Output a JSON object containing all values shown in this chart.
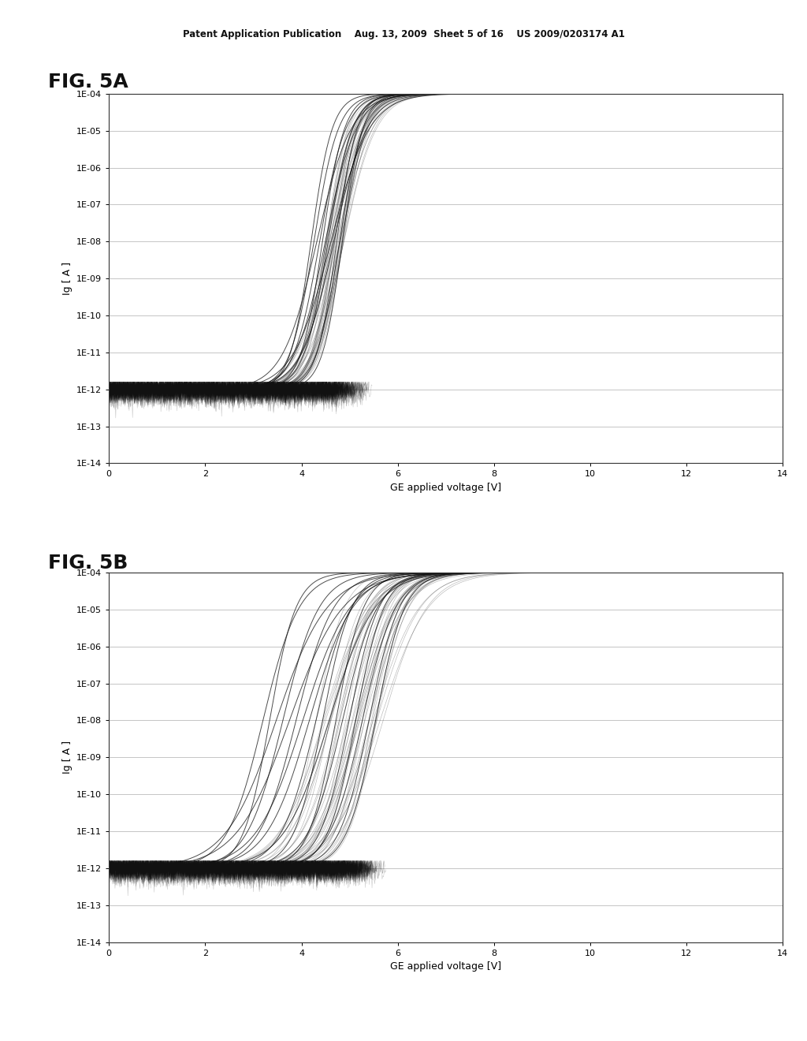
{
  "background_color": "#ffffff",
  "plot_bg_color": "#ffffff",
  "header_text": "Patent Application Publication    Aug. 13, 2009  Sheet 5 of 16    US 2009/0203174 A1",
  "fig5a_label": "FIG. 5A",
  "fig5b_label": "FIG. 5B",
  "xlabel": "GE applied voltage [V]",
  "ylabel": "Ig [ A ]",
  "xlim": [
    0,
    14
  ],
  "ylim_log_min": -14,
  "ylim_log_max": -4,
  "xticks": [
    0,
    2,
    4,
    6,
    8,
    10,
    12,
    14
  ],
  "ytick_labels": [
    "1E-04",
    "1E-05",
    "1E-06",
    "1E-07",
    "1E-08",
    "1E-09",
    "1E-10",
    "1E-11",
    "1E-12",
    "1E-13",
    "1E-14"
  ],
  "ytick_values_log": [
    -4,
    -5,
    -6,
    -7,
    -8,
    -9,
    -10,
    -11,
    -12,
    -13,
    -14
  ],
  "curve_color": "#111111",
  "grid_color": "#bbbbbb",
  "header_fontsize": 8.5,
  "label_fontsize": 18,
  "tick_fontsize": 8,
  "axis_label_fontsize": 9,
  "fig5a_vth_base": 4.7,
  "fig5a_vth_spread": 0.5,
  "fig5a_num_main": 12,
  "fig5a_num_dense": 40,
  "fig5b_vth_base": 5.0,
  "fig5b_vth_spread": 1.8,
  "fig5b_num_main": 18,
  "fig5b_num_dense": 40,
  "noise_num": 80,
  "noise_floor_log": -12,
  "noise_amp": 0.5
}
